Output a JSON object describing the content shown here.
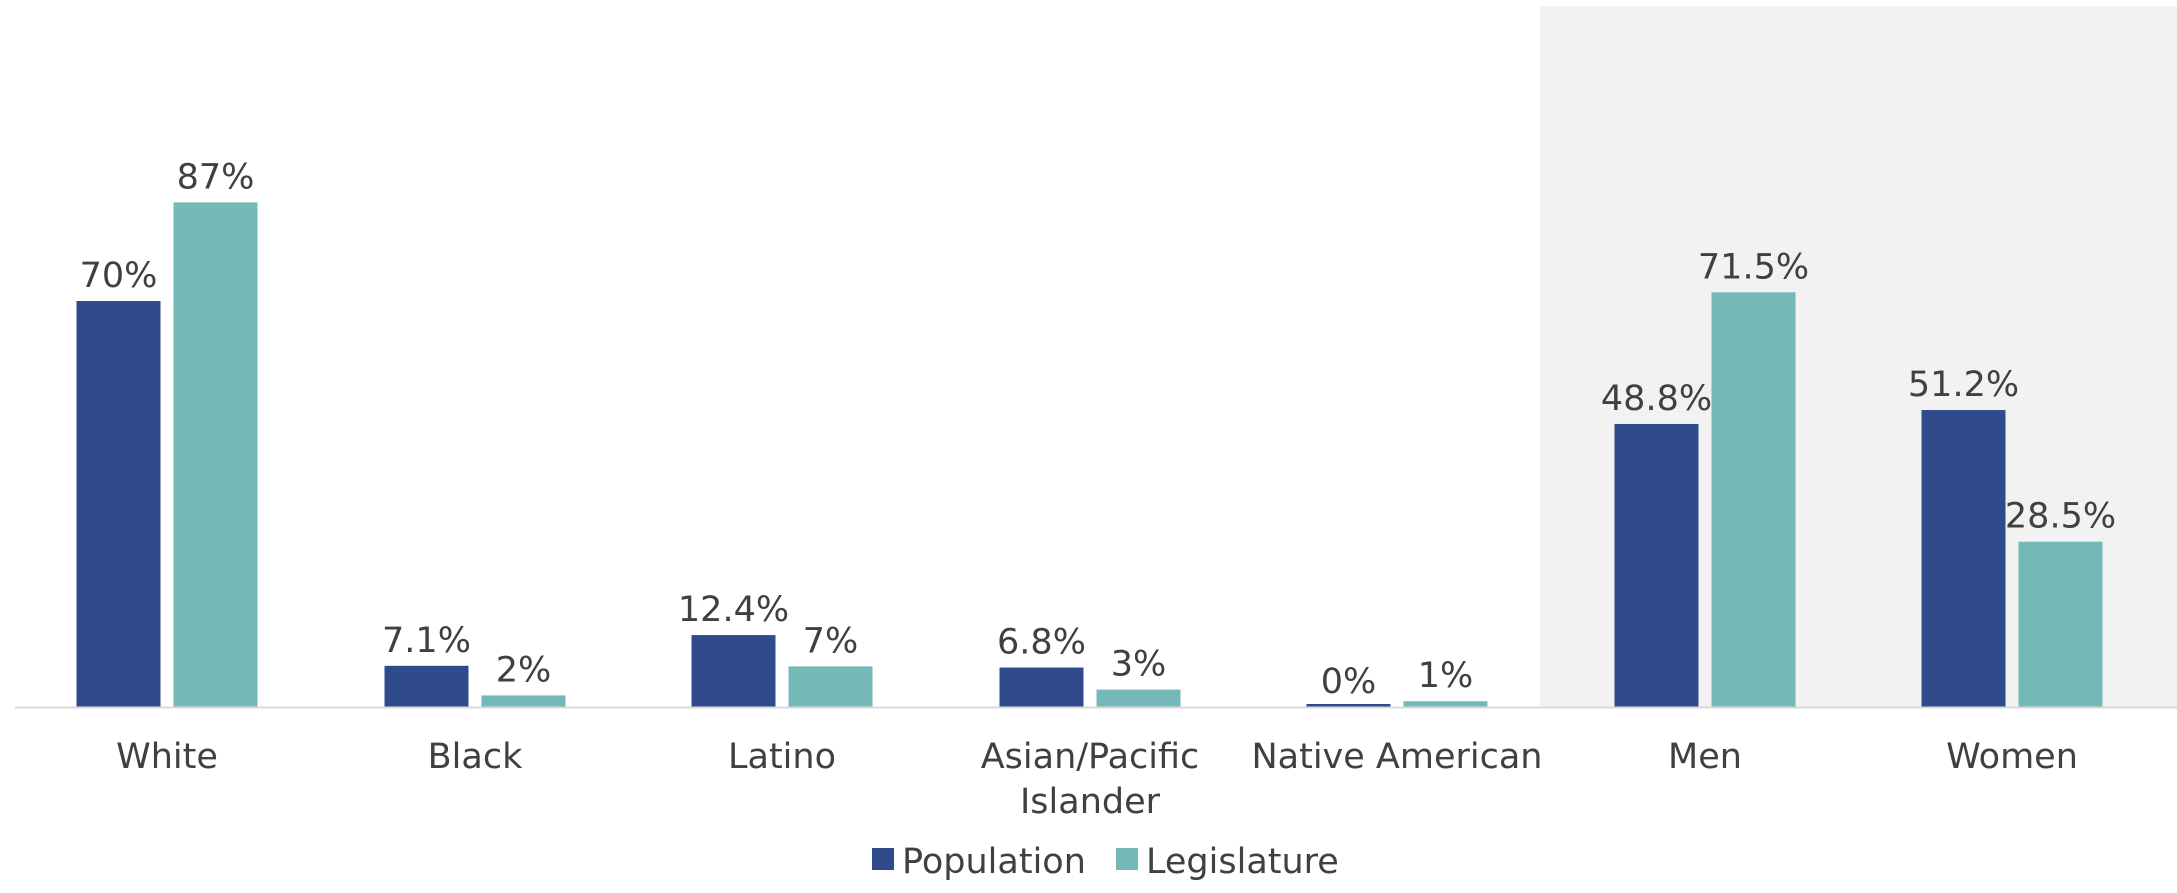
{
  "chart_data": {
    "type": "bar",
    "categories": [
      [
        "White"
      ],
      [
        "Black"
      ],
      [
        "Latino"
      ],
      [
        "Asian/Pacific",
        "Islander"
      ],
      [
        "Native American"
      ],
      [
        "Men"
      ],
      [
        "Women"
      ]
    ],
    "series": [
      {
        "name": "Population",
        "color": "#2f4b8c",
        "values": [
          70,
          7.1,
          12.4,
          6.8,
          0,
          48.8,
          51.2
        ],
        "labels": [
          "70%",
          "7.1%",
          "12.4%",
          "6.8%",
          "0%",
          "48.8%",
          "51.2%"
        ]
      },
      {
        "name": "Legislature",
        "color": "#74b9b8",
        "values": [
          87,
          2,
          7,
          3,
          1,
          71.5,
          28.5
        ],
        "labels": [
          "87%",
          "2%",
          "7%",
          "3%",
          "1%",
          "71.5%",
          "28.5%"
        ]
      }
    ],
    "ylim": [
      0,
      100
    ],
    "highlighted_group": [
      "Men",
      "Women"
    ],
    "highlight_color": "#f2f2f2",
    "axis_color": "#d9d9d9",
    "legend_position": "bottom",
    "grid": false
  }
}
